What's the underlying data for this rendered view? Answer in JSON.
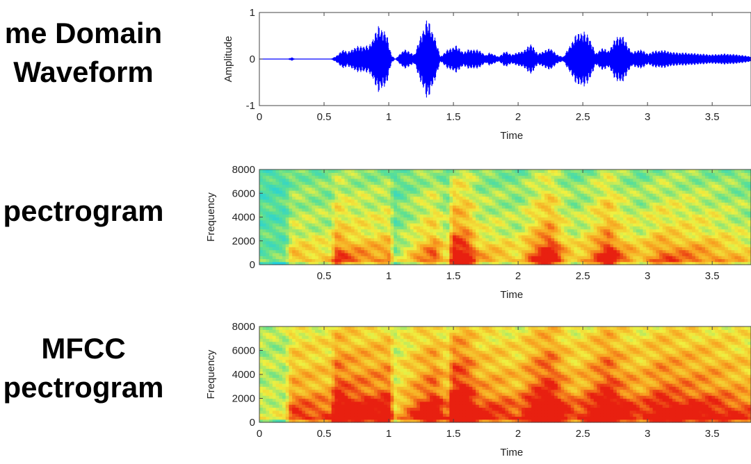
{
  "labels": {
    "row1": [
      "me Domain",
      "Waveform"
    ],
    "row2": [
      "pectrogram"
    ],
    "row3": [
      "MFCC",
      "pectrogram"
    ]
  },
  "chart_data": [
    {
      "type": "line",
      "panel": "waveform",
      "xlabel": "Time",
      "ylabel": "Amplitude",
      "xlim": [
        0,
        3.8
      ],
      "ylim": [
        -1,
        1
      ],
      "xticks": [
        0,
        0.5,
        1,
        1.5,
        2,
        2.5,
        3,
        3.5
      ],
      "xtick_labels": [
        "0",
        "0.5",
        "1",
        "1.5",
        "2",
        "2.5",
        "3",
        "3.5"
      ],
      "yticks": [
        -1,
        0,
        1
      ],
      "ytick_labels": [
        "-1",
        "0",
        "1"
      ],
      "color": "#0000ff",
      "envelope": {
        "x": [
          0,
          0.22,
          0.25,
          0.28,
          0.55,
          0.6,
          0.65,
          0.68,
          0.75,
          0.85,
          0.92,
          0.98,
          1.02,
          1.05,
          1.12,
          1.2,
          1.25,
          1.3,
          1.35,
          1.4,
          1.45,
          1.52,
          1.58,
          1.62,
          1.7,
          1.75,
          1.78,
          1.85,
          1.9,
          1.95,
          2.05,
          2.1,
          2.15,
          2.2,
          2.25,
          2.3,
          2.35,
          2.45,
          2.5,
          2.55,
          2.6,
          2.65,
          2.7,
          2.75,
          2.8,
          2.88,
          2.95,
          3.0,
          3.05,
          3.12,
          3.2,
          3.3,
          3.4,
          3.5,
          3.6,
          3.7,
          3.8
        ],
        "amplitude": [
          0,
          0,
          0.04,
          0,
          0,
          0.08,
          0.22,
          0.15,
          0.28,
          0.3,
          0.72,
          0.6,
          0.1,
          0,
          0.22,
          0.1,
          0.55,
          0.9,
          0.55,
          0.05,
          0.2,
          0.3,
          0.15,
          0.22,
          0.2,
          0.08,
          0.15,
          0.05,
          0.18,
          0.1,
          0.2,
          0.35,
          0.12,
          0.18,
          0.25,
          0.1,
          0.05,
          0.55,
          0.62,
          0.5,
          0.12,
          0.25,
          0.18,
          0.45,
          0.55,
          0.15,
          0.22,
          0.12,
          0.18,
          0.2,
          0.15,
          0.14,
          0.12,
          0.1,
          0.12,
          0.1,
          0.06
        ]
      }
    },
    {
      "type": "heatmap",
      "panel": "spectrogram",
      "xlabel": "Time",
      "ylabel": "Frequency",
      "xlim": [
        0,
        3.8
      ],
      "ylim": [
        0,
        8000
      ],
      "xticks": [
        0.5,
        1,
        1.5,
        2,
        2.5,
        3,
        3.5
      ],
      "xtick_labels": [
        "0.5",
        "1",
        "1.5",
        "2",
        "2.5",
        "3",
        "3.5"
      ],
      "yticks": [
        0,
        2000,
        4000,
        6000,
        8000
      ],
      "ytick_labels": [
        "0",
        "2000",
        "4000",
        "6000",
        "8000"
      ],
      "colormap": [
        "#20d0e0",
        "#60e090",
        "#f0f040",
        "#f8a020",
        "#e82010"
      ],
      "base_level": 0.15,
      "activity_x": [
        0,
        0.2,
        0.25,
        0.55,
        0.6,
        0.7,
        0.9,
        1.0,
        1.05,
        1.2,
        1.35,
        1.45,
        1.5,
        1.6,
        1.7,
        1.9,
        2.0,
        2.15,
        2.25,
        2.35,
        2.45,
        2.55,
        2.7,
        2.8,
        2.95,
        3.1,
        3.3,
        3.5,
        3.8
      ],
      "activity": [
        0.1,
        0.1,
        0.45,
        0.4,
        0.75,
        0.6,
        0.55,
        0.6,
        0.2,
        0.45,
        0.7,
        0.35,
        0.95,
        0.9,
        0.5,
        0.45,
        0.4,
        0.75,
        0.95,
        0.55,
        0.4,
        0.55,
        0.9,
        0.6,
        0.45,
        0.65,
        0.6,
        0.55,
        0.4
      ]
    },
    {
      "type": "heatmap",
      "panel": "mfcc_spectrogram",
      "xlabel": "Time",
      "ylabel": "Frequency",
      "xlim": [
        0,
        3.8
      ],
      "ylim": [
        0,
        8000
      ],
      "xticks": [
        0,
        0.5,
        1,
        1.5,
        2,
        2.5,
        3,
        3.5
      ],
      "xtick_labels": [
        "0",
        "0.5",
        "1",
        "1.5",
        "2",
        "2.5",
        "3",
        "3.5"
      ],
      "yticks": [
        0,
        2000,
        4000,
        6000,
        8000
      ],
      "ytick_labels": [
        "0",
        "2000",
        "4000",
        "6000",
        "8000"
      ],
      "colormap": [
        "#20d0e0",
        "#60e090",
        "#f0f040",
        "#f8a020",
        "#e82010"
      ],
      "base_level": 0.35,
      "activity_x": [
        0,
        0.2,
        0.25,
        0.55,
        0.6,
        0.7,
        0.9,
        1.0,
        1.05,
        1.2,
        1.35,
        1.45,
        1.5,
        1.6,
        1.7,
        1.9,
        2.0,
        2.15,
        2.25,
        2.35,
        2.45,
        2.55,
        2.7,
        2.8,
        2.95,
        3.1,
        3.3,
        3.5,
        3.8
      ],
      "activity": [
        0.1,
        0.1,
        0.55,
        0.5,
        0.9,
        0.75,
        0.7,
        0.75,
        0.25,
        0.55,
        0.8,
        0.45,
        1.0,
        0.95,
        0.6,
        0.55,
        0.5,
        0.85,
        1.0,
        0.65,
        0.5,
        0.65,
        0.95,
        0.7,
        0.55,
        0.75,
        0.7,
        0.65,
        0.5
      ]
    }
  ]
}
